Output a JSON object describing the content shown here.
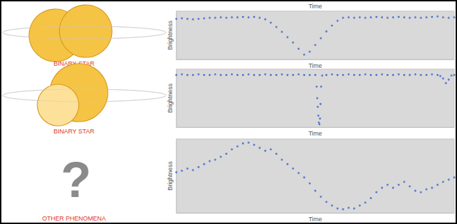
{
  "chart_data": [
    {
      "type": "scatter",
      "title": "Time",
      "x_label": "Time",
      "y_label": "Brightness",
      "annotation": "BINARY STAR",
      "color": "#3b63d1",
      "marker": "circle",
      "tick_labels": false,
      "grid": false,
      "xlim": [
        0,
        100
      ],
      "ylim": [
        0,
        100
      ],
      "x": [
        0,
        2,
        4,
        6,
        8,
        10,
        12,
        14,
        16,
        18,
        20,
        22,
        24,
        26,
        28,
        30,
        32,
        34,
        36,
        38,
        40,
        42,
        44,
        46,
        48,
        50,
        52,
        54,
        56,
        58,
        60,
        62,
        64,
        66,
        68,
        70,
        72,
        74,
        76,
        78,
        80,
        82,
        84,
        86,
        88,
        90,
        92,
        94,
        96,
        98,
        100
      ],
      "values": [
        84,
        85,
        84,
        83,
        84,
        85,
        86,
        86,
        87,
        86,
        87,
        87,
        88,
        87,
        88,
        86,
        83,
        76,
        67,
        57,
        46,
        35,
        22,
        10,
        16,
        30,
        44,
        58,
        70,
        80,
        86,
        87,
        86,
        87,
        86,
        87,
        88,
        87,
        86,
        87,
        88,
        87,
        86,
        87,
        86,
        87,
        88,
        89,
        87,
        86,
        87
      ]
    },
    {
      "type": "scatter",
      "x_label": "Time",
      "y_label": "Brightness",
      "annotation": "BINARY STAR",
      "color": "#3b63d1",
      "marker": "circle",
      "tick_labels": false,
      "grid": false,
      "xlim": [
        0,
        100
      ],
      "ylim": [
        0,
        100
      ],
      "x": [
        0,
        2,
        4,
        6,
        8,
        10,
        12,
        14,
        16,
        18,
        20,
        22,
        24,
        26,
        28,
        30,
        32,
        34,
        36,
        38,
        40,
        42,
        44,
        46,
        48,
        50,
        50.5,
        50.7,
        50.9,
        51.1,
        51.3,
        51.5,
        51.7,
        51.9,
        52.1,
        52.5,
        54,
        56,
        58,
        60,
        62,
        64,
        66,
        68,
        70,
        72,
        74,
        76,
        78,
        80,
        82,
        84,
        86,
        88,
        90,
        92,
        94,
        95,
        96,
        97,
        98,
        99,
        100
      ],
      "values": [
        90,
        91,
        90,
        90,
        91,
        90,
        90,
        91,
        90,
        90,
        91,
        90,
        90,
        91,
        90,
        90,
        91,
        90,
        90,
        91,
        90,
        90,
        91,
        90,
        90,
        90,
        70,
        50,
        35,
        20,
        8,
        5,
        15,
        40,
        70,
        89,
        90,
        91,
        90,
        90,
        91,
        90,
        90,
        91,
        90,
        90,
        91,
        90,
        90,
        91,
        90,
        90,
        91,
        90,
        90,
        91,
        90,
        88,
        84,
        76,
        82,
        89,
        90
      ]
    },
    {
      "type": "scatter",
      "x_label": "Time",
      "y_label": "Brightness",
      "annotation": "OTHER PHENOMENA",
      "annotation_symbol": "?",
      "color": "#3b63d1",
      "marker": "circle",
      "tick_labels": false,
      "grid": false,
      "xlim": [
        0,
        100
      ],
      "ylim": [
        0,
        100
      ],
      "x": [
        0,
        2,
        4,
        6,
        8,
        10,
        12,
        14,
        16,
        18,
        20,
        22,
        24,
        26,
        28,
        30,
        32,
        34,
        36,
        38,
        40,
        42,
        44,
        46,
        48,
        50,
        52,
        54,
        56,
        58,
        60,
        62,
        64,
        66,
        68,
        70,
        72,
        74,
        76,
        78,
        80,
        82,
        84,
        86,
        88,
        90,
        92,
        94,
        96,
        98,
        100
      ],
      "values": [
        55,
        57,
        60,
        58,
        62,
        66,
        70,
        72,
        76,
        80,
        86,
        90,
        94,
        95,
        92,
        88,
        84,
        86,
        80,
        72,
        66,
        60,
        54,
        48,
        40,
        30,
        22,
        15,
        10,
        6,
        5,
        7,
        6,
        10,
        14,
        20,
        28,
        34,
        38,
        34,
        38,
        42,
        36,
        30,
        28,
        32,
        34,
        38,
        42,
        45,
        48
      ]
    }
  ]
}
